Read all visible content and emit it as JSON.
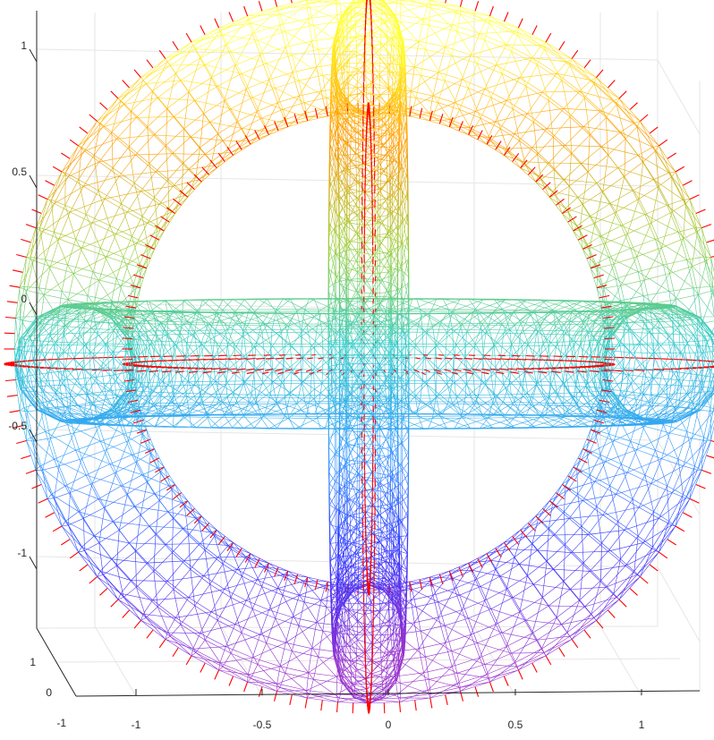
{
  "chart_data": {
    "type": "surface-3d-mesh",
    "title": "",
    "xlabel": "",
    "ylabel": "",
    "zlabel": "",
    "grid": true,
    "xlim": [
      -1.2,
      1.2
    ],
    "ylim": [
      -1,
      1
    ],
    "zlim": [
      -1.2,
      1.2
    ],
    "x_ticks": [
      "-1",
      "-0.5",
      "0",
      "0.5",
      "1"
    ],
    "y_ticks": [
      "-1",
      "0",
      "1"
    ],
    "z_ticks": [
      "1",
      "0.5",
      "0",
      "-0.5",
      "-1"
    ],
    "colormap": [
      "#ffff33",
      "#ff9900",
      "#99cc33",
      "#33cccc",
      "#3399ff",
      "#3333ff",
      "#9933cc"
    ],
    "normal_vector_color": "#ff0000",
    "grid_color": "#e6e6e6",
    "axis_color": "#262626",
    "shape": {
      "ring_major_radius": 1.0,
      "ring_minor_radius": 0.2,
      "rings": [
        "equatorial",
        "vertical-front",
        "vertical-side"
      ]
    }
  }
}
